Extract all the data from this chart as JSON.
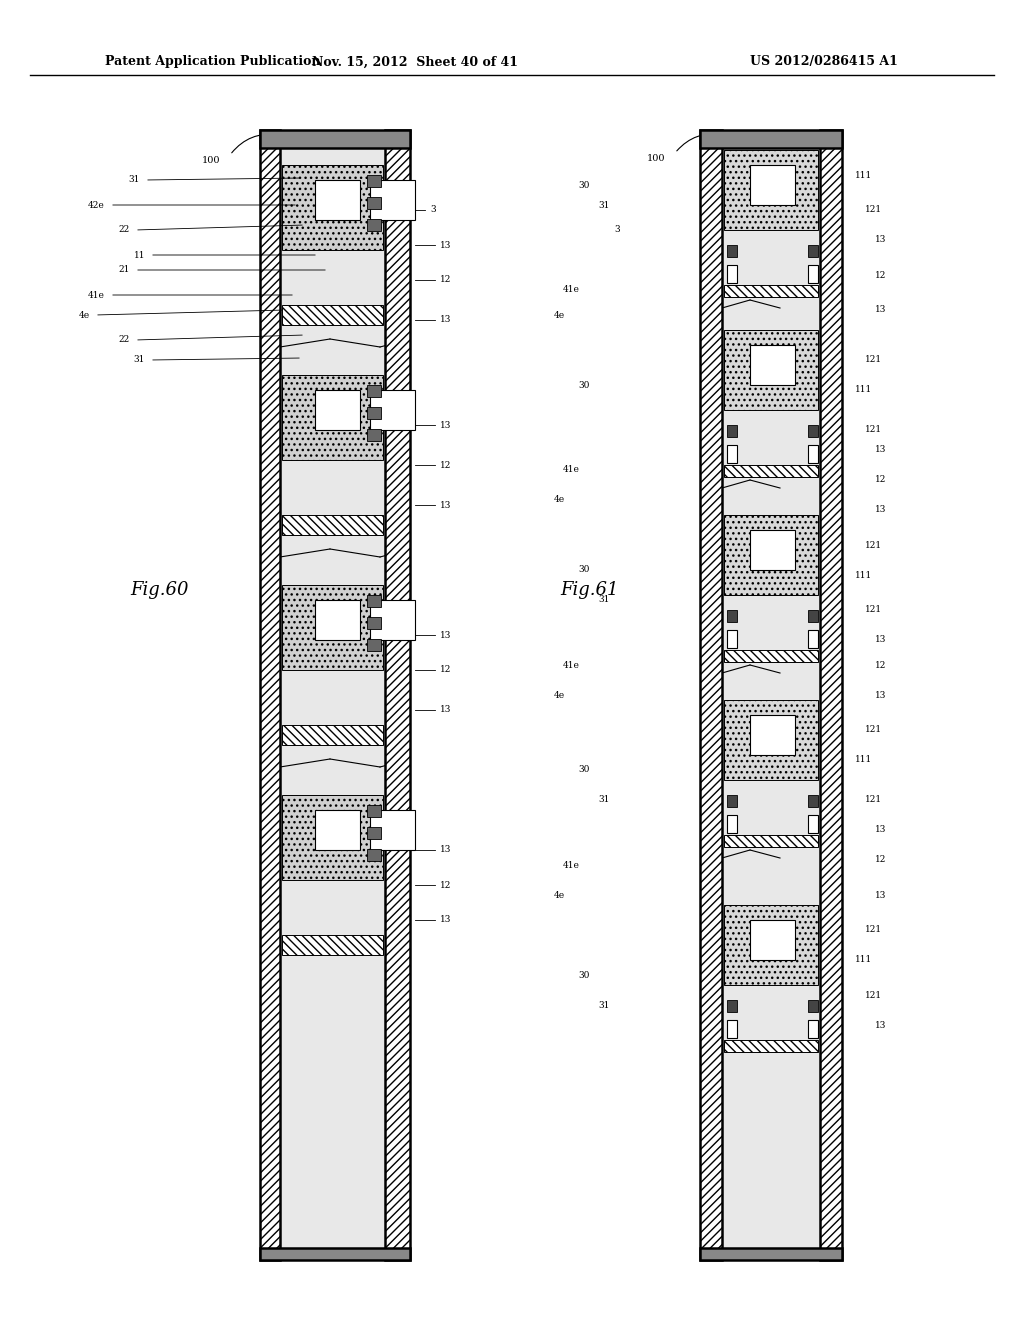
{
  "title_left": "Patent Application Publication",
  "title_mid": "Nov. 15, 2012  Sheet 40 of 41",
  "title_right": "US 2012/0286415 A1",
  "fig60_label": "Fig.60",
  "fig61_label": "Fig.61",
  "bg_color": "#ffffff",
  "line_color": "#000000",
  "hatch_color": "#000000",
  "fill_light": "#d8d8d8",
  "fill_dark": "#555555",
  "fill_white": "#ffffff"
}
